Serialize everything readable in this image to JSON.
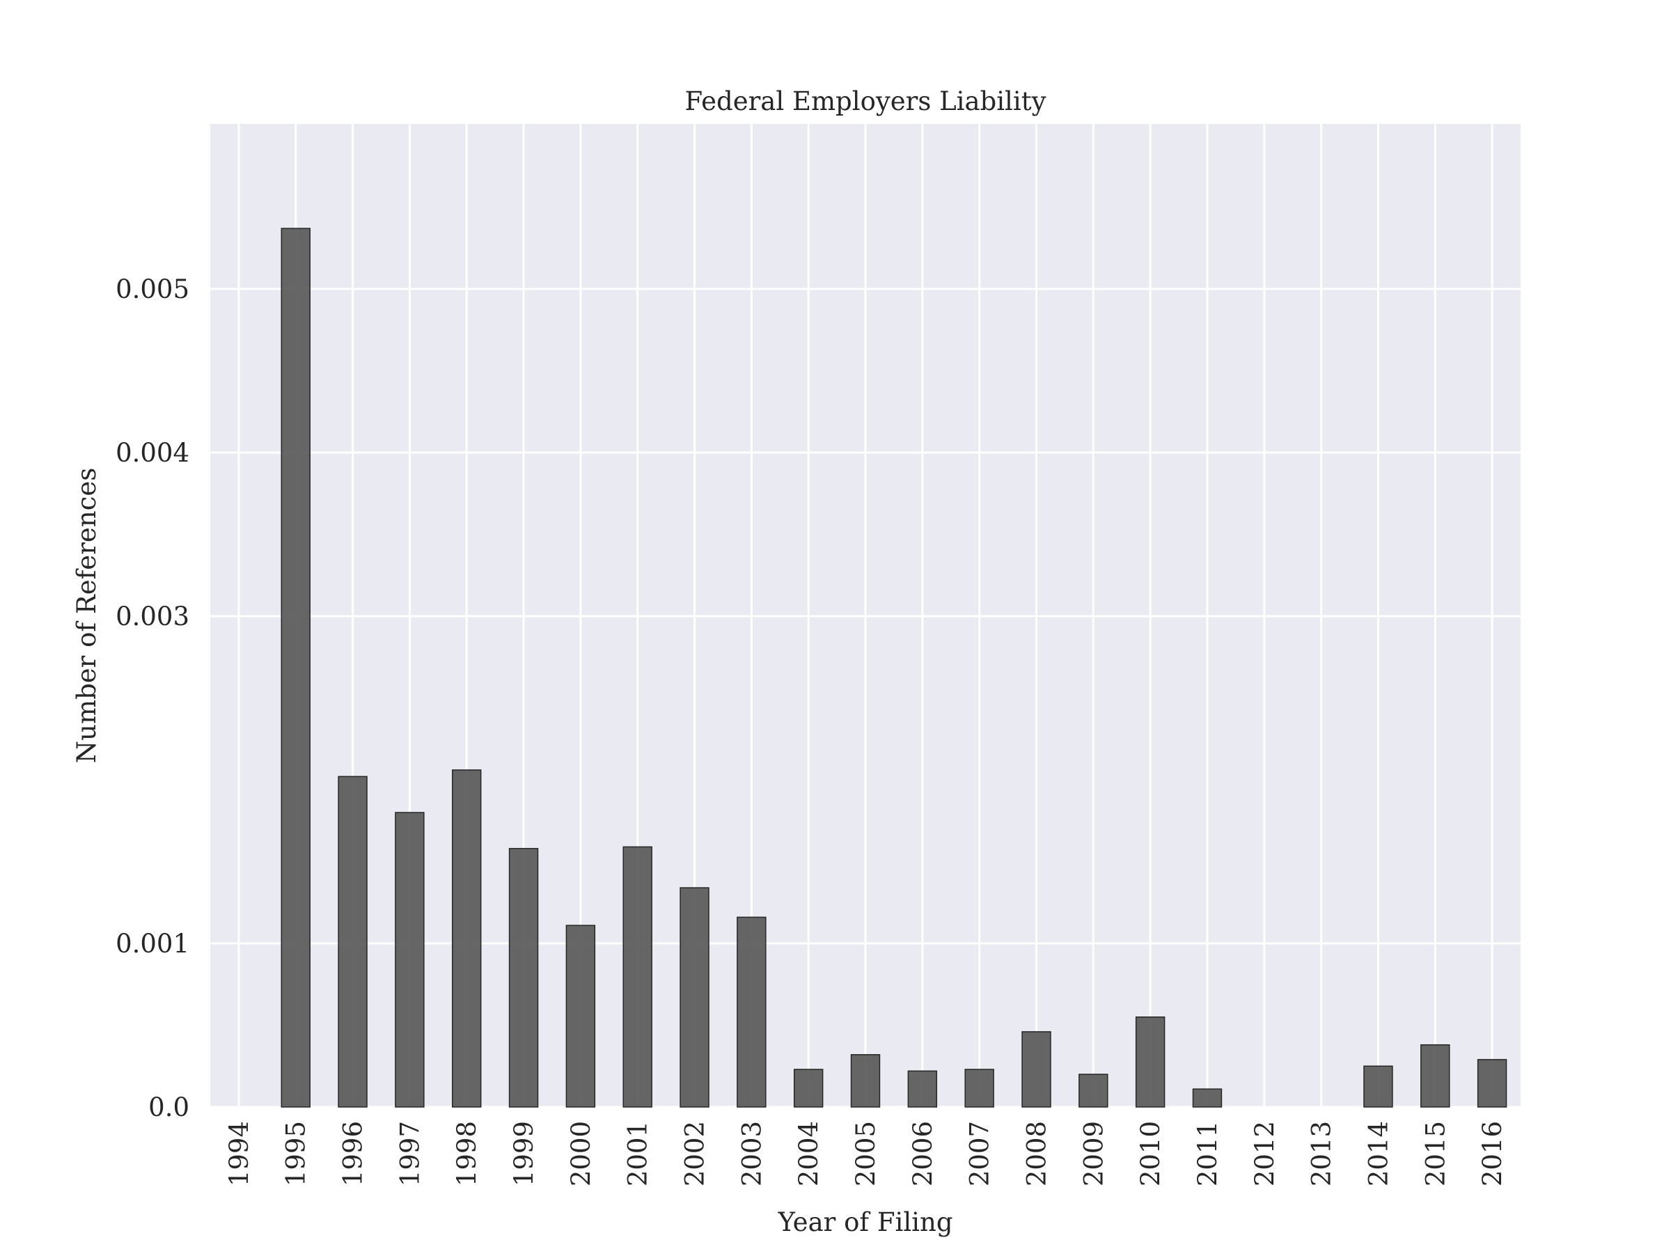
{
  "chart_data": {
    "type": "bar",
    "title": "Federal Employers Liability",
    "xlabel": "Year of Filing",
    "ylabel": "Number of References",
    "categories": [
      "1994",
      "1995",
      "1996",
      "1997",
      "1998",
      "1999",
      "2000",
      "2001",
      "2002",
      "2003",
      "2004",
      "2005",
      "2006",
      "2007",
      "2008",
      "2009",
      "2010",
      "2011",
      "2012",
      "2013",
      "2014",
      "2015",
      "2016"
    ],
    "values": [
      0.0,
      0.00537,
      0.00202,
      0.0018,
      0.00206,
      0.00158,
      0.00111,
      0.00159,
      0.00134,
      0.00116,
      0.00023,
      0.00032,
      0.00022,
      0.00023,
      0.00046,
      0.0002,
      0.00055,
      0.00011,
      0.0,
      0.0,
      0.00025,
      0.00038,
      0.00029
    ],
    "yticks": [
      0.0,
      0.001,
      0.003,
      0.004,
      0.005
    ],
    "ytick_labels": [
      "0.0",
      "0.001",
      "0.003",
      "0.004",
      "0.005"
    ],
    "ylim": [
      0,
      0.006
    ],
    "grid": true,
    "colors": {
      "bar": "#595959",
      "bar_edge": "#262626",
      "plot_background": "#eaeaf2",
      "grid": "#ffffff"
    }
  }
}
